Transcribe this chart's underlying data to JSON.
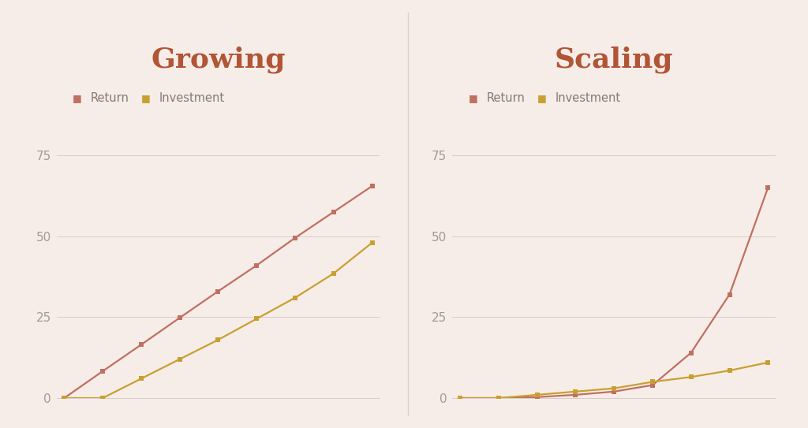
{
  "bg_color": "#f6ede9",
  "divider_color": "#ddd0ca",
  "return_color": "#c07060",
  "investment_color": "#c9a030",
  "grid_color": "#d8cdc8",
  "title_color": "#b05535",
  "tick_color": "#a89890",
  "legend_text_color": "#887870",
  "title_fontsize": 26,
  "legend_fontsize": 10.5,
  "tick_fontsize": 11,
  "growing_title": "Growing",
  "scaling_title": "Scaling",
  "growing_x": [
    0,
    1,
    2,
    3,
    4,
    5,
    6,
    7,
    8
  ],
  "growing_return": [
    0,
    8.3,
    16.5,
    24.8,
    33,
    41,
    49.5,
    57.5,
    65.5
  ],
  "growing_investment": [
    0,
    0,
    6,
    12,
    18,
    24.5,
    31,
    38.5,
    48
  ],
  "scaling_x": [
    0,
    1,
    2,
    3,
    4,
    5,
    6,
    7,
    8
  ],
  "scaling_return": [
    0,
    0,
    0.3,
    1,
    2,
    4,
    14,
    32,
    65
  ],
  "scaling_investment": [
    0,
    0,
    1,
    2,
    3,
    5,
    6.5,
    8.5,
    11
  ],
  "ylim": [
    0,
    82
  ],
  "yticks": [
    0,
    25,
    50,
    75
  ],
  "marker_size": 4,
  "line_width": 1.6
}
